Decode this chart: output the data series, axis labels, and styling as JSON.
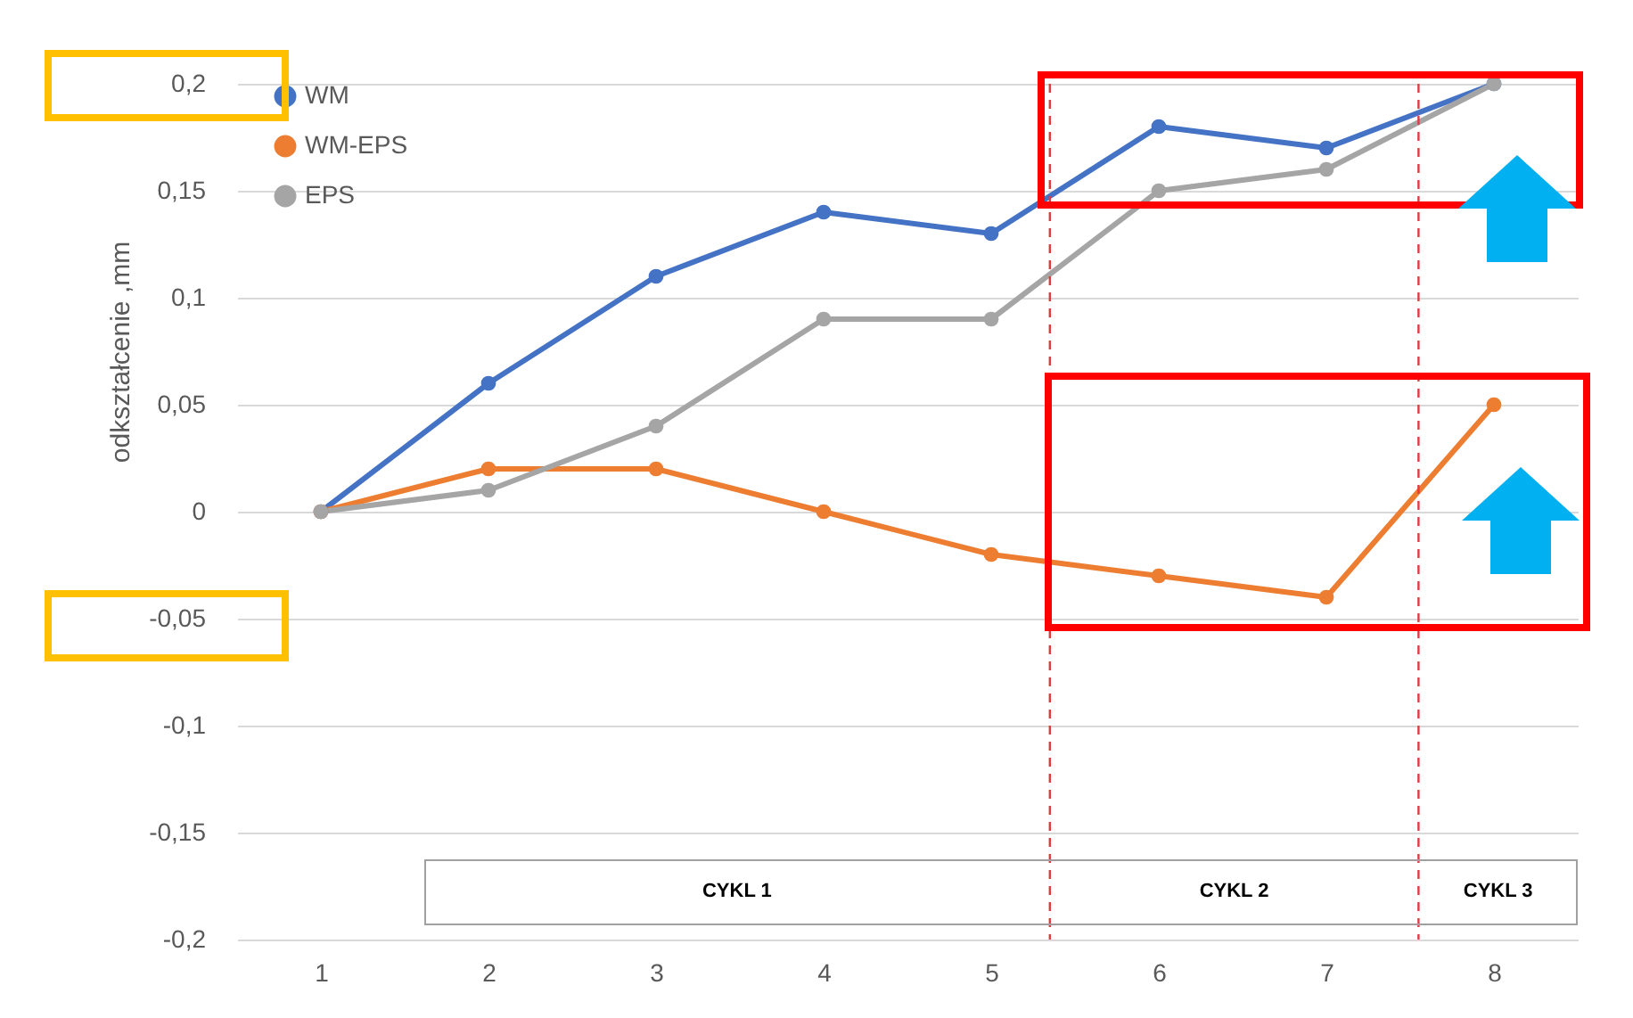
{
  "chart_data": {
    "type": "line",
    "ylabel": "odkształcenie ,mm",
    "x": [
      1,
      2,
      3,
      4,
      5,
      6,
      7,
      8
    ],
    "xlim": [
      0.5,
      8.5
    ],
    "xticks": [
      1,
      2,
      3,
      4,
      5,
      6,
      7,
      8
    ],
    "ylim": [
      -0.2,
      0.2
    ],
    "yticks": [
      {
        "value": -0.2,
        "label": "-0,2"
      },
      {
        "value": -0.15,
        "label": "-0,15"
      },
      {
        "value": -0.1,
        "label": "-0,1"
      },
      {
        "value": -0.05,
        "label": "-0,05"
      },
      {
        "value": 0,
        "label": "0"
      },
      {
        "value": 0.05,
        "label": "0,05"
      },
      {
        "value": 0.1,
        "label": "0,1"
      },
      {
        "value": 0.15,
        "label": "0,15"
      },
      {
        "value": 0.2,
        "label": "0,2"
      }
    ],
    "series": [
      {
        "name": "WM",
        "color": "#4472c4",
        "values": [
          0,
          0.06,
          0.11,
          0.14,
          0.13,
          0.18,
          0.17,
          0.2
        ]
      },
      {
        "name": "WM-EPS",
        "color": "#ed7d31",
        "values": [
          0,
          0.02,
          0.02,
          0,
          -0.02,
          -0.03,
          -0.04,
          0.05
        ]
      },
      {
        "name": "EPS",
        "color": "#a5a5a5",
        "values": [
          0,
          0.01,
          0.04,
          0.09,
          0.09,
          0.15,
          0.16,
          0.2
        ]
      }
    ],
    "ref_lines": [
      {
        "axis": "x",
        "value": 5.35,
        "color": "#e03c3c",
        "line_style": "dashed"
      },
      {
        "axis": "x",
        "value": 7.55,
        "color": "#e03c3c",
        "line_style": "dashed"
      }
    ],
    "annotations": [
      "CYKL 1",
      "CYKL 2",
      "CYKL 3"
    ],
    "grid": "y",
    "legend": "top left",
    "marker": "circle",
    "line_style": "solid"
  }
}
